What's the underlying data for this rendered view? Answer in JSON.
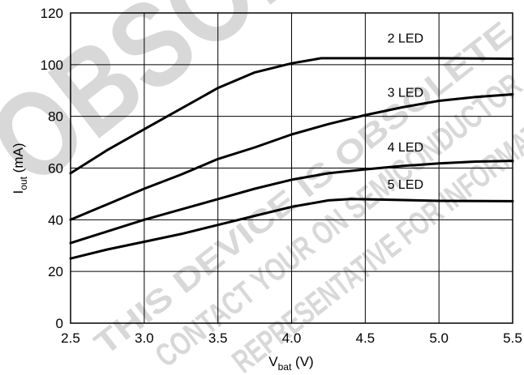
{
  "watermark": {
    "big_text": "OBSOLETE",
    "line1": "THIS DEVICE IS OBSOLETE",
    "line2": "CONTACT YOUR ON SEMICONDUCTOR",
    "line3": "REPRESENTATIVE FOR INFORMATION",
    "color": "#d9d9d9"
  },
  "chart_data": {
    "type": "line",
    "xlabel": {
      "main": "V",
      "sub": "bat",
      "unit": " (V)"
    },
    "ylabel": {
      "main": "I",
      "sub": "out",
      "unit": " (mA)"
    },
    "xlim": [
      2.5,
      5.5
    ],
    "ylim": [
      0,
      120
    ],
    "x_ticks": [
      "2.5",
      "3.0",
      "3.5",
      "4.0",
      "4.5",
      "5.0",
      "5.5"
    ],
    "x_tick_values": [
      2.5,
      3.0,
      3.5,
      4.0,
      4.5,
      5.0,
      5.5
    ],
    "y_ticks": [
      "0",
      "20",
      "40",
      "60",
      "80",
      "100",
      "120"
    ],
    "y_tick_values": [
      0,
      20,
      40,
      60,
      80,
      100,
      120
    ],
    "grid": true,
    "series": [
      {
        "name": "2 LED",
        "points": [
          [
            2.5,
            58
          ],
          [
            2.75,
            67
          ],
          [
            3.0,
            75
          ],
          [
            3.25,
            83
          ],
          [
            3.5,
            91
          ],
          [
            3.75,
            97
          ],
          [
            4.0,
            100.5
          ],
          [
            4.2,
            102.5
          ],
          [
            4.5,
            102.5
          ],
          [
            5.0,
            102.5
          ],
          [
            5.5,
            102.3
          ]
        ]
      },
      {
        "name": "3 LED",
        "points": [
          [
            2.5,
            40
          ],
          [
            2.75,
            46
          ],
          [
            3.0,
            52
          ],
          [
            3.25,
            57.5
          ],
          [
            3.5,
            63.5
          ],
          [
            3.75,
            68
          ],
          [
            4.0,
            73
          ],
          [
            4.25,
            77
          ],
          [
            4.5,
            80.5
          ],
          [
            4.75,
            83.5
          ],
          [
            5.0,
            86
          ],
          [
            5.25,
            87.5
          ],
          [
            5.5,
            88.5
          ]
        ]
      },
      {
        "name": "4 LED",
        "points": [
          [
            2.5,
            31
          ],
          [
            2.75,
            35.5
          ],
          [
            3.0,
            40
          ],
          [
            3.25,
            44
          ],
          [
            3.5,
            48
          ],
          [
            3.75,
            52
          ],
          [
            4.0,
            55.5
          ],
          [
            4.25,
            58
          ],
          [
            4.5,
            59.5
          ],
          [
            4.75,
            60.8
          ],
          [
            5.0,
            61.8
          ],
          [
            5.25,
            62.5
          ],
          [
            5.5,
            62.8
          ]
        ]
      },
      {
        "name": "5 LED",
        "points": [
          [
            2.5,
            25
          ],
          [
            2.75,
            28.5
          ],
          [
            3.0,
            31.5
          ],
          [
            3.25,
            34.5
          ],
          [
            3.5,
            38
          ],
          [
            3.75,
            41.5
          ],
          [
            4.0,
            45
          ],
          [
            4.25,
            47.5
          ],
          [
            4.4,
            48
          ],
          [
            4.6,
            47.8
          ],
          [
            5.0,
            47.3
          ],
          [
            5.5,
            47.2
          ]
        ]
      }
    ]
  }
}
